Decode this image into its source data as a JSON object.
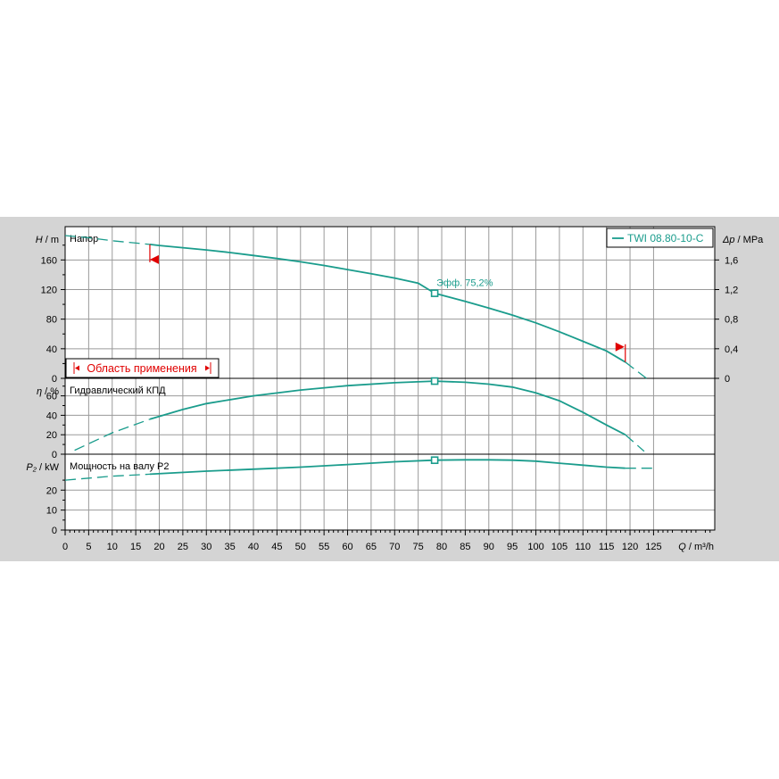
{
  "chart_data": {
    "type": "line",
    "legend": {
      "label": "TWI 08.80-10-C",
      "placement": "top-right"
    },
    "colors": {
      "curve": "#1a9c8c",
      "range_marker": "#e00000",
      "grid": "#9a9a9a",
      "background": "#ffffff",
      "panel": "#d4d4d4"
    },
    "x_axis": {
      "label_var": "Q",
      "label_unit": "m³/h",
      "ticks": [
        "0",
        "5",
        "10",
        "15",
        "20",
        "25",
        "30",
        "35",
        "40",
        "45",
        "50",
        "55",
        "60",
        "65",
        "70",
        "75",
        "80",
        "85",
        "90",
        "95",
        "100",
        "105",
        "110",
        "115",
        "120",
        "125"
      ],
      "range": [
        0,
        138
      ]
    },
    "application_range": {
      "label": "Область применения",
      "q_min": 18,
      "q_max": 119
    },
    "best_efficiency_point": {
      "q": 78.5,
      "label": "Эфф.  75,2%"
    },
    "panels": [
      {
        "name": "Напор",
        "y_var": "H",
        "y_unit": "m",
        "y_ticks": [
          "0",
          "40",
          "80",
          "120",
          "160"
        ],
        "y_range": [
          0,
          205
        ],
        "right_axis": {
          "var": "Δp",
          "unit": "MPa",
          "ticks": [
            "0",
            "0,4",
            "0,8",
            "1,2",
            "1,6"
          ],
          "range": [
            0,
            2.05
          ]
        },
        "series": [
          {
            "name": "TWI 08.80-10-C",
            "q": [
              0,
              5,
              10,
              18,
              20,
              25,
              30,
              35,
              40,
              45,
              50,
              55,
              60,
              65,
              70,
              75,
              78.5,
              80,
              85,
              90,
              95,
              100,
              105,
              110,
              115,
              119,
              123.5
            ],
            "values": [
              193,
              190,
              186,
              181,
              179.5,
              176.5,
              173.5,
              170,
              166,
              162,
              157.5,
              152.5,
              147,
              141.5,
              135.5,
              128.5,
              115,
              112.5,
              104,
              95,
              85.5,
              75,
              63,
              50,
              37,
              22,
              0
            ]
          }
        ]
      },
      {
        "name": "Гидравлический КПД",
        "y_var": "η",
        "y_unit": "%",
        "y_ticks": [
          "0",
          "20",
          "40",
          "60"
        ],
        "y_range": [
          0,
          78
        ],
        "series": [
          {
            "name": "",
            "q": [
              2,
              10,
              18,
              25,
              30,
              40,
              50,
              60,
              70,
              78.5,
              85,
              90,
              95,
              100,
              105,
              110,
              115,
              119,
              123
            ],
            "values": [
              4,
              22,
              36,
              46,
              52,
              60,
              66,
              70.5,
              73.5,
              75.2,
              74,
              72,
              69,
              63,
              55,
              43,
              30,
              20,
              3
            ]
          }
        ]
      },
      {
        "name": "Мощность на валу P2",
        "y_var": "P₂",
        "y_unit": "kW",
        "y_ticks": [
          "0",
          "10",
          "20"
        ],
        "y_range": [
          0,
          38
        ],
        "series": [
          {
            "name": "",
            "q": [
              0,
              10,
              18,
              30,
              40,
              50,
              60,
              70,
              78.5,
              85,
              90,
              95,
              100,
              105,
              110,
              115,
              119,
              125
            ],
            "values": [
              25,
              27,
              28,
              29.5,
              30.5,
              31.5,
              32.8,
              34.2,
              35,
              35.2,
              35.2,
              35,
              34.5,
              33.5,
              32.5,
              31.5,
              31,
              31
            ]
          }
        ]
      }
    ]
  }
}
